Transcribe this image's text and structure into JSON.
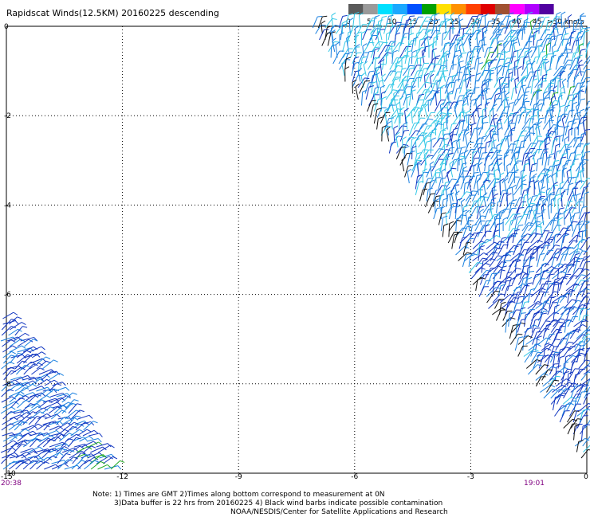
{
  "title": "Rapidscat Winds(12.5KM) 20160225 descending",
  "legend": {
    "unit_label": ">50 knots",
    "labels": [
      "0",
      "5",
      "10",
      "15",
      "20",
      "25",
      "30",
      "35",
      "40",
      "45"
    ],
    "colors": [
      "#5a5a5a",
      "#9a9a9a",
      "#00e0ff",
      "#1aa8ff",
      "#0050ff",
      "#00a000",
      "#ffe000",
      "#ff9000",
      "#ff4000",
      "#e00000",
      "#a05030",
      "#ff00ff",
      "#b000ff",
      "#5000a0"
    ]
  },
  "axes": {
    "x_ticks": [
      "-15",
      "-12",
      "-9",
      "-6",
      "-3",
      "0"
    ],
    "y_ticks": [
      "0",
      "-2",
      "-4",
      "-6",
      "-8",
      "-10"
    ],
    "x_range": [
      -15,
      0
    ],
    "y_range": [
      -10,
      0
    ]
  },
  "swath_times": {
    "left": "20:38",
    "right": "19:01"
  },
  "notes": [
    "Note: 1) Times are GMT 2)Times along bottom correspond to measurement at 0N",
    "3)Data buffer is 22 hrs from 20160225 4) Black wind barbs indicate possible contamination",
    "NOAA/NESDIS/Center for Satellite Applications and Research"
  ],
  "barb_colors": {
    "light": "#33c8e6",
    "medium": "#1a80e0",
    "dark": "#1035c0",
    "contaminated": "#111111",
    "strong": "#22aa22"
  }
}
